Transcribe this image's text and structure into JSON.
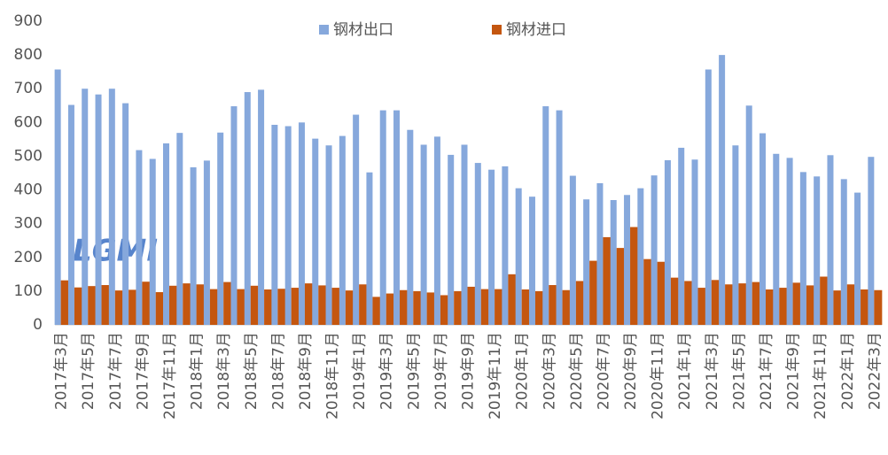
{
  "chart_data": {
    "type": "bar",
    "watermark": "LGMI",
    "categories": [
      "2017年3月",
      null,
      "2017年5月",
      null,
      "2017年7月",
      null,
      "2017年9月",
      null,
      "2017年11月",
      null,
      "2018年1月",
      null,
      "2018年3月",
      null,
      "2018年5月",
      null,
      "2018年7月",
      null,
      "2018年9月",
      null,
      "2018年11月",
      null,
      "2019年1月",
      null,
      "2019年3月",
      null,
      "2019年5月",
      null,
      "2019年7月",
      null,
      "2019年9月",
      null,
      "2019年11月",
      null,
      "2020年1月",
      null,
      "2020年3月",
      null,
      "2020年5月",
      null,
      "2020年7月",
      null,
      "2020年9月",
      null,
      "2020年11月",
      null,
      "2021年1月",
      null,
      "2021年3月",
      null,
      "2021年5月",
      null,
      "2021年7月",
      null,
      "2021年9月",
      null,
      "2021年11月",
      null,
      "2022年1月",
      null,
      "2022年3月"
    ],
    "series": [
      {
        "name": "钢材出口",
        "color": "#86a8dc",
        "values": [
          757,
          652,
          700,
          683,
          700,
          657,
          518,
          492,
          538,
          569,
          467,
          487,
          570,
          648,
          690,
          697,
          593,
          589,
          600,
          552,
          532,
          560,
          623,
          452,
          636,
          636,
          578,
          534,
          558,
          504,
          534,
          480,
          460,
          470,
          405,
          380,
          648,
          636,
          442,
          372,
          420,
          370,
          385,
          405,
          443,
          488,
          525,
          490,
          757,
          800,
          532,
          650,
          568,
          507,
          495,
          453,
          440,
          503,
          432,
          392,
          498
        ]
      },
      {
        "name": "钢材进口",
        "color": "#c4560f",
        "values": [
          132,
          111,
          115,
          118,
          102,
          104,
          128,
          97,
          116,
          123,
          120,
          106,
          127,
          106,
          116,
          105,
          107,
          110,
          123,
          117,
          110,
          102,
          120,
          83,
          93,
          103,
          100,
          96,
          88,
          100,
          113,
          106,
          106,
          150,
          105,
          100,
          118,
          103,
          130,
          190,
          260,
          228,
          290,
          195,
          187,
          140,
          130,
          110,
          133,
          120,
          123,
          127,
          105,
          110,
          125,
          117,
          143,
          102,
          120,
          105,
          103
        ]
      }
    ],
    "ylim": [
      0,
      900
    ],
    "yticks": [
      0,
      100,
      200,
      300,
      400,
      500,
      600,
      700,
      800,
      900
    ],
    "grid": false,
    "legend": "top"
  }
}
